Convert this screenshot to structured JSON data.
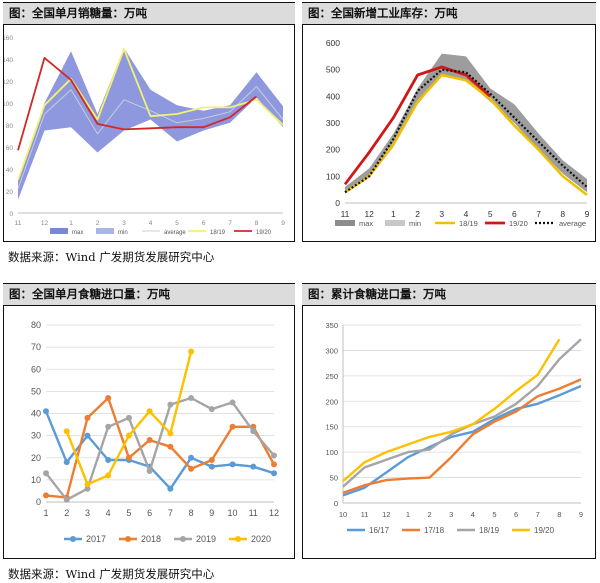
{
  "panels": [
    {
      "title": "图：全国单月销糖量：万吨",
      "chart_data": {
        "type": "area",
        "categories": [
          "11",
          "12",
          "1",
          "2",
          "3",
          "4",
          "5",
          "6",
          "7",
          "8",
          "9"
        ],
        "ylim": [
          0,
          160
        ],
        "yticks": [
          0,
          20,
          40,
          60,
          80,
          100,
          120,
          140,
          160
        ],
        "band": {
          "max": [
            30,
            100,
            147,
            90,
            150,
            112,
            98,
            93,
            98,
            128,
            97
          ],
          "min": [
            12,
            75,
            78,
            55,
            75,
            85,
            65,
            75,
            82,
            105,
            78
          ]
        },
        "series": [
          {
            "name": "max",
            "values": [
              30,
              100,
              147,
              90,
              150,
              112,
              98,
              93,
              98,
              128,
              97
            ]
          },
          {
            "name": "min",
            "values": [
              12,
              75,
              78,
              55,
              75,
              85,
              65,
              75,
              82,
              105,
              78
            ]
          },
          {
            "name": "average",
            "values": [
              22,
              90,
              112,
              72,
              103,
              93,
              82,
              86,
              92,
              115,
              85
            ]
          },
          {
            "name": "18/19",
            "values": [
              30,
              98,
              122,
              85,
              149,
              88,
              90,
              96,
              96,
              103,
              80
            ]
          },
          {
            "name": "19/20",
            "values": [
              57,
              141,
              121,
              81,
              76,
              77,
              78,
              78,
              87,
              106,
              null
            ]
          }
        ],
        "legend": [
          "max",
          "min",
          "average",
          "18/19",
          "19/20"
        ],
        "colors": {
          "max": "#7a86d9",
          "min": "#aab4e8",
          "average": "#c8ccd8",
          "18/19": "#f4f070",
          "19/20": "#d02828"
        }
      }
    },
    {
      "title": "图：全国新增工业库存：万吨",
      "chart_data": {
        "type": "area",
        "categories": [
          "11",
          "12",
          "1",
          "2",
          "3",
          "4",
          "5",
          "6",
          "7",
          "8",
          "9"
        ],
        "ylim": [
          0,
          600
        ],
        "yticks": [
          0,
          100,
          200,
          300,
          400,
          500,
          600
        ],
        "band": {
          "max": [
            60,
            130,
            260,
            430,
            560,
            550,
            430,
            370,
            260,
            160,
            90
          ],
          "min": [
            40,
            95,
            210,
            370,
            480,
            460,
            380,
            300,
            200,
            110,
            40
          ]
        },
        "series": [
          {
            "name": "max",
            "values": [
              60,
              130,
              260,
              430,
              560,
              550,
              430,
              370,
              260,
              160,
              90
            ]
          },
          {
            "name": "min",
            "values": [
              40,
              95,
              210,
              370,
              480,
              460,
              380,
              300,
              200,
              110,
              40
            ]
          },
          {
            "name": "18/19",
            "values": [
              40,
              100,
              220,
              380,
              480,
              460,
              390,
              290,
              200,
              100,
              30
            ]
          },
          {
            "name": "19/20",
            "values": [
              70,
              190,
              320,
              480,
              510,
              480,
              400,
              null,
              null,
              null,
              null
            ]
          },
          {
            "name": "average",
            "values": [
              40,
              100,
              240,
              420,
              500,
              490,
              410,
              320,
              230,
              140,
              60
            ]
          }
        ],
        "legend": [
          "max",
          "min",
          "18/19",
          "19/20",
          "average"
        ],
        "colors": {
          "max": "#8c8c8c",
          "min": "#c8c8c8",
          "18/19": "#f0c000",
          "19/20": "#d01818",
          "average": "#111111"
        }
      }
    },
    {
      "title": "图：全国单月食糖进口量：万吨",
      "chart_data": {
        "type": "line",
        "categories": [
          "1",
          "2",
          "3",
          "4",
          "5",
          "6",
          "7",
          "8",
          "9",
          "10",
          "11",
          "12"
        ],
        "ylim": [
          0,
          80
        ],
        "yticks": [
          0,
          10,
          20,
          30,
          40,
          50,
          60,
          70,
          80
        ],
        "series": [
          {
            "name": "2017",
            "values": [
              41,
              18,
              30,
              19,
              19,
              16,
              6,
              20,
              16,
              17,
              16,
              13
            ],
            "color": "#5b9bd5"
          },
          {
            "name": "2018",
            "values": [
              3,
              2,
              38,
              47,
              20,
              28,
              25,
              15,
              19,
              34,
              34,
              17
            ],
            "color": "#ed7d31"
          },
          {
            "name": "2019",
            "values": [
              13,
              1,
              6,
              34,
              38,
              14,
              44,
              47,
              42,
              45,
              32,
              21
            ],
            "color": "#a5a5a5"
          },
          {
            "name": "2020",
            "values": [
              null,
              32,
              8,
              12,
              30,
              41,
              31,
              68,
              null,
              null,
              null,
              null
            ],
            "color": "#ffc000"
          }
        ],
        "legend": [
          "2017",
          "2018",
          "2019",
          "2020"
        ],
        "markers": true,
        "grid": true
      }
    },
    {
      "title": "图：累计食糖进口量：万吨",
      "chart_data": {
        "type": "line",
        "categories": [
          "10",
          "11",
          "12",
          "1",
          "2",
          "3",
          "4",
          "5",
          "6",
          "7",
          "8",
          "9"
        ],
        "ylim": [
          0,
          350
        ],
        "yticks": [
          0,
          50,
          100,
          150,
          200,
          250,
          300,
          350
        ],
        "series": [
          {
            "name": "16/17",
            "values": [
              15,
              30,
              60,
              90,
              110,
              130,
              140,
              165,
              185,
              195,
              212,
              230
            ],
            "color": "#5b9bd5"
          },
          {
            "name": "17/18",
            "values": [
              20,
              35,
              45,
              48,
              50,
              90,
              135,
              160,
              180,
              210,
              225,
              243
            ],
            "color": "#ed7d31"
          },
          {
            "name": "18/19",
            "values": [
              32,
              70,
              85,
              100,
              105,
              135,
              155,
              170,
              195,
              230,
              283,
              322
            ],
            "color": "#a5a5a5"
          },
          {
            "name": "19/20",
            "values": [
              43,
              80,
              100,
              115,
              130,
              140,
              155,
              185,
              220,
              252,
              322,
              null
            ],
            "color": "#ffc000"
          }
        ],
        "legend": [
          "16/17",
          "17/18",
          "18/19",
          "19/20"
        ],
        "grid": true
      }
    }
  ],
  "sources": [
    "数据来源：Wind  广发期货发展研究中心",
    "数据来源：Wind  广发期货发展研究中心"
  ]
}
